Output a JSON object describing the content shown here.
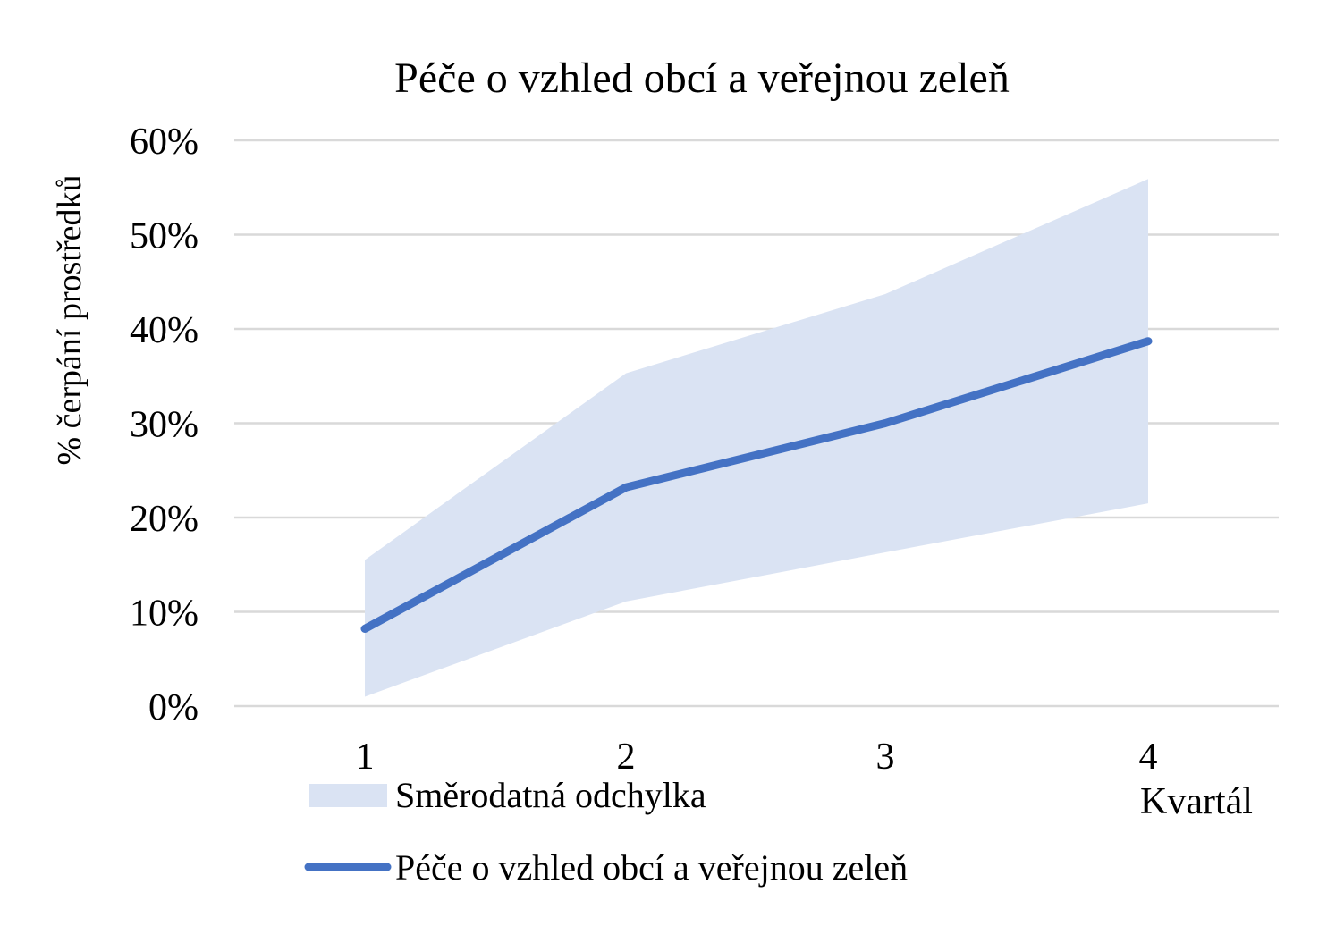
{
  "chart_data": {
    "type": "line",
    "title": "Péče o vzhled obcí a veřejnou zeleň",
    "xlabel": "Kvartál",
    "ylabel": "% čerpání prostředků",
    "categories": [
      "1",
      "2",
      "3",
      "4"
    ],
    "yticks": [
      "0%",
      "10%",
      "20%",
      "30%",
      "40%",
      "50%",
      "60%"
    ],
    "ylim": [
      0,
      0.6
    ],
    "grid": true,
    "legend_position": "bottom-left",
    "series": [
      {
        "name": "Péče o vzhled obcí a veřejnou zeleň",
        "kind": "line",
        "color": "#4472c4",
        "values": [
          0.082,
          0.232,
          0.3,
          0.387
        ]
      },
      {
        "name": "Směrodatná odchylka",
        "kind": "band",
        "color": "#dae3f3",
        "upper": [
          0.155,
          0.353,
          0.437,
          0.559
        ],
        "lower": [
          0.01,
          0.111,
          0.163,
          0.215
        ]
      }
    ]
  }
}
